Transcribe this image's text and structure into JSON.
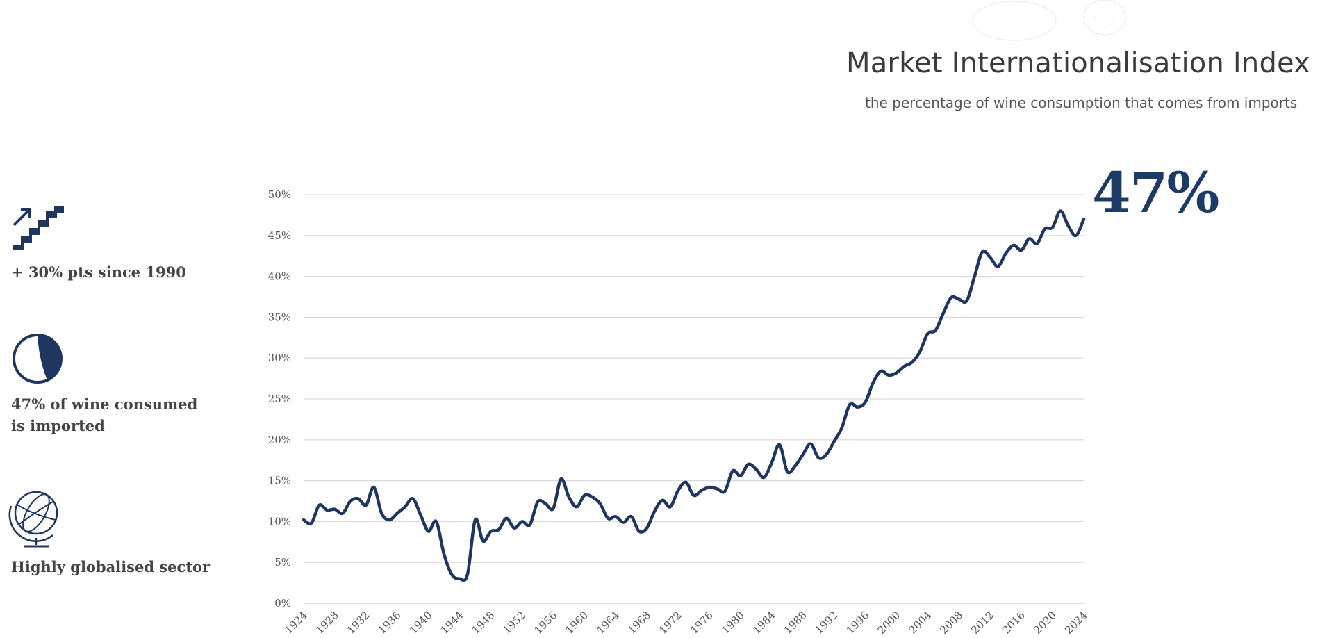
{
  "header": {
    "title": "Market Internationalisation Index",
    "subtitle": "the percentage of wine consumption that comes from imports"
  },
  "highlight": {
    "value": "47%"
  },
  "stats": [
    {
      "icon": "rising-stairs-icon",
      "label": "+ 30% pts since 1990"
    },
    {
      "icon": "pie-share-icon",
      "label": "47% of wine consumed\nis imported"
    },
    {
      "icon": "globe-icon",
      "label": "Highly globalised sector"
    }
  ],
  "colors": {
    "line": "#1f3660",
    "accent": "#1c3b66",
    "grid": "#d9d9d9",
    "text": "#444444"
  },
  "chart_data": {
    "type": "line",
    "title": "Market Internationalisation Index",
    "subtitle": "the percentage of wine consumption that comes from imports",
    "xlabel": "",
    "ylabel": "",
    "ylim": [
      0,
      50
    ],
    "yticks": [
      0,
      5,
      10,
      15,
      20,
      25,
      30,
      35,
      40,
      45,
      50
    ],
    "ytick_labels": [
      "0%",
      "5%",
      "10%",
      "15%",
      "20%",
      "25%",
      "30%",
      "35%",
      "40%",
      "45%",
      "50%"
    ],
    "xlim": [
      1924,
      2024
    ],
    "xtick_labels": [
      "1924",
      "1928",
      "1932",
      "1936",
      "1940",
      "1944",
      "1948",
      "1952",
      "1956",
      "1960",
      "1964",
      "1968",
      "1972",
      "1976",
      "1980",
      "1984",
      "1988",
      "1992",
      "1996",
      "2000",
      "2004",
      "2008",
      "2012",
      "2016",
      "2020",
      "2024"
    ],
    "grid": true,
    "legend": "none",
    "series": [
      {
        "name": "Market Internationalisation Index",
        "x": [
          1924,
          1925,
          1926,
          1927,
          1928,
          1929,
          1930,
          1931,
          1932,
          1933,
          1934,
          1935,
          1936,
          1937,
          1938,
          1939,
          1940,
          1941,
          1942,
          1943,
          1944,
          1945,
          1946,
          1947,
          1948,
          1949,
          1950,
          1951,
          1952,
          1953,
          1954,
          1955,
          1956,
          1957,
          1958,
          1959,
          1960,
          1961,
          1962,
          1963,
          1964,
          1965,
          1966,
          1967,
          1968,
          1969,
          1970,
          1971,
          1972,
          1973,
          1974,
          1975,
          1976,
          1977,
          1978,
          1979,
          1980,
          1981,
          1982,
          1983,
          1984,
          1985,
          1986,
          1987,
          1988,
          1989,
          1990,
          1991,
          1992,
          1993,
          1994,
          1995,
          1996,
          1997,
          1998,
          1999,
          2000,
          2001,
          2002,
          2003,
          2004,
          2005,
          2006,
          2007,
          2008,
          2009,
          2010,
          2011,
          2012,
          2013,
          2014,
          2015,
          2016,
          2017,
          2018,
          2019,
          2020,
          2021,
          2022,
          2023,
          2024
        ],
        "values": [
          10.2,
          9.8,
          12.0,
          11.4,
          11.5,
          11.0,
          12.5,
          12.8,
          12.0,
          14.2,
          11.0,
          10.2,
          11.0,
          11.8,
          12.8,
          10.8,
          8.8,
          10.0,
          6.0,
          3.5,
          3.0,
          3.5,
          10.2,
          7.6,
          8.8,
          9.0,
          10.4,
          9.2,
          10.0,
          9.6,
          12.4,
          12.2,
          11.6,
          15.2,
          13.0,
          11.8,
          13.2,
          13.0,
          12.2,
          10.4,
          10.6,
          9.9,
          10.6,
          8.8,
          9.2,
          11.3,
          12.6,
          11.8,
          13.8,
          14.8,
          13.2,
          13.8,
          14.2,
          14.0,
          13.7,
          16.2,
          15.6,
          17.0,
          16.4,
          15.4,
          17.2,
          19.4,
          16.1,
          16.8,
          18.2,
          19.5,
          17.8,
          18.2,
          19.8,
          21.5,
          24.3,
          24.0,
          24.6,
          27.0,
          28.4,
          27.9,
          28.2,
          29.0,
          29.5,
          30.8,
          33.0,
          33.4,
          35.5,
          37.4,
          37.2,
          37.0,
          40.0,
          43.0,
          42.3,
          41.2,
          42.8,
          43.8,
          43.2,
          44.6,
          44.0,
          45.8,
          46.0,
          48.0,
          46.2,
          45.0,
          47.0
        ]
      }
    ]
  }
}
